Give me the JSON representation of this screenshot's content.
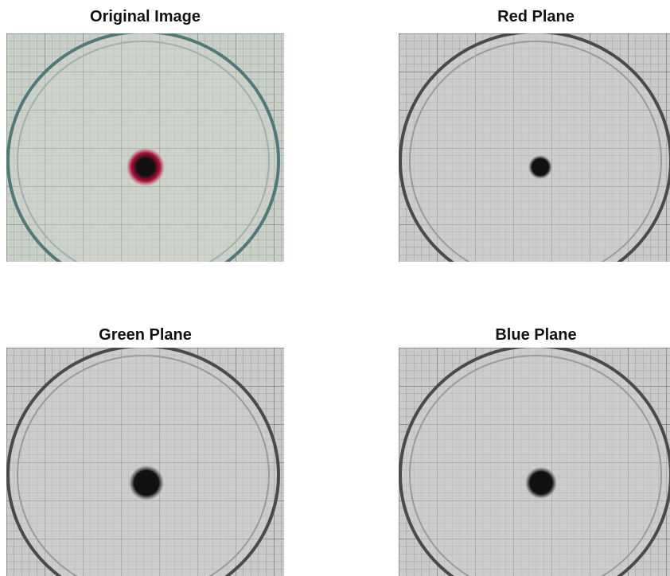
{
  "panels": [
    {
      "title": "Original Image"
    },
    {
      "title": "Red Plane"
    },
    {
      "title": "Green Plane"
    },
    {
      "title": "Blue Plane"
    }
  ]
}
